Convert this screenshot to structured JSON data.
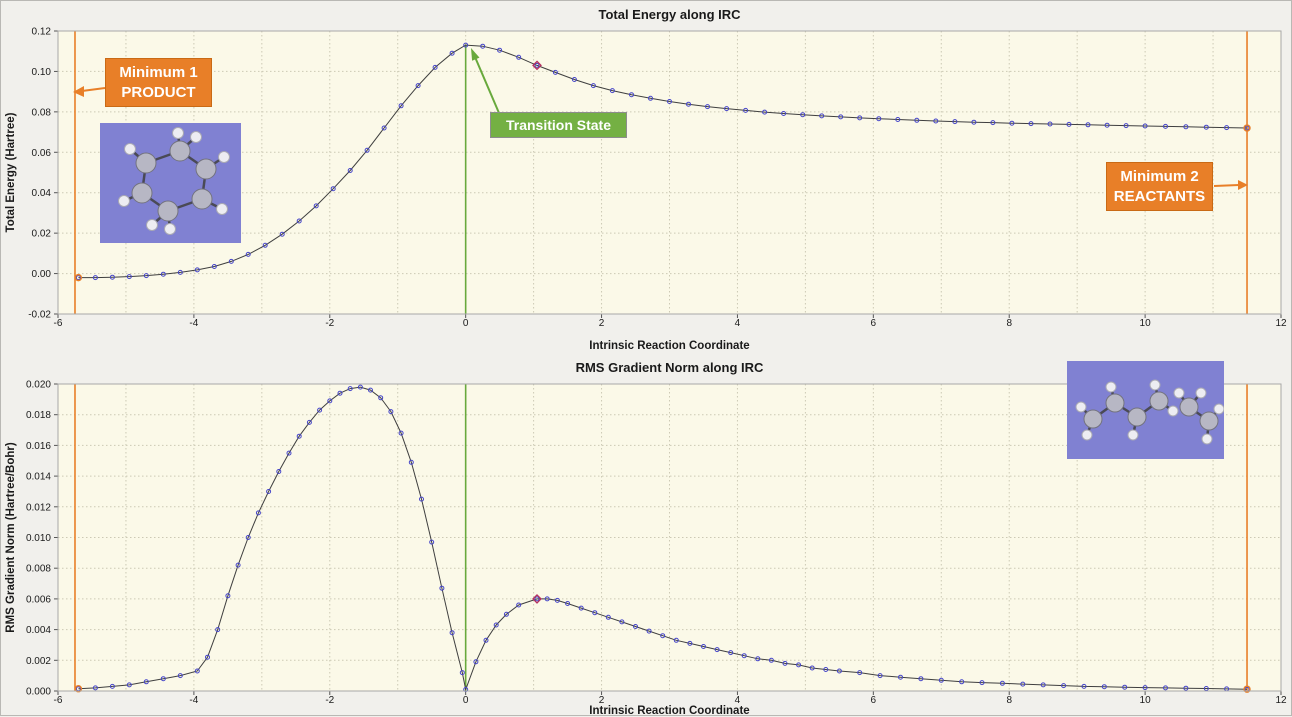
{
  "colors": {
    "window_bg": "#f1f0ec",
    "plot_bg": "#fbf9e8",
    "plot_border": "#a8a8a8",
    "grid": "#ccc9b4",
    "line": "#3f3f3f",
    "marker": "#4545c8",
    "orange": "#e87f28",
    "green": "#68a93c",
    "highlight": "#b5305f"
  },
  "chart_data": [
    {
      "type": "line",
      "title": "Total Energy along IRC",
      "xlabel": "Intrinsic Reaction Coordinate",
      "ylabel": "Total Energy (Hartree)",
      "xlim": [
        -6,
        12
      ],
      "ylim": [
        -0.02,
        0.12
      ],
      "xticks": [
        -6,
        -4,
        -2,
        0,
        2,
        4,
        6,
        8,
        10,
        12
      ],
      "yticks": [
        -0.02,
        0,
        0.02,
        0.04,
        0.06,
        0.08,
        0.1,
        0.12
      ],
      "ydec": 2,
      "grid": true,
      "legend": "none",
      "series": {
        "name": "Total Energy",
        "x": [
          -5.7,
          -5.45,
          -5.2,
          -4.95,
          -4.7,
          -4.45,
          -4.2,
          -3.95,
          -3.7,
          -3.45,
          -3.2,
          -2.95,
          -2.7,
          -2.45,
          -2.2,
          -1.95,
          -1.7,
          -1.45,
          -1.2,
          -0.95,
          -0.7,
          -0.45,
          -0.2,
          0,
          0.25,
          0.5,
          0.78,
          1.05,
          1.32,
          1.6,
          1.88,
          2.16,
          2.44,
          2.72,
          3,
          3.28,
          3.56,
          3.84,
          4.12,
          4.4,
          4.68,
          4.96,
          5.24,
          5.52,
          5.8,
          6.08,
          6.36,
          6.64,
          6.92,
          7.2,
          7.48,
          7.76,
          8.04,
          8.32,
          8.6,
          8.88,
          9.16,
          9.44,
          9.72,
          10,
          10.3,
          10.6,
          10.9,
          11.2,
          11.5
        ],
        "y": [
          -0.002,
          -0.002,
          -0.0018,
          -0.0015,
          -0.001,
          -0.0003,
          0.0006,
          0.0018,
          0.0035,
          0.006,
          0.0095,
          0.014,
          0.0195,
          0.026,
          0.0335,
          0.042,
          0.051,
          0.061,
          0.072,
          0.083,
          0.093,
          0.102,
          0.109,
          0.113,
          0.1125,
          0.1105,
          0.107,
          0.103,
          0.0995,
          0.096,
          0.093,
          0.0905,
          0.0885,
          0.0867,
          0.0851,
          0.0838,
          0.0826,
          0.0816,
          0.0807,
          0.0799,
          0.0792,
          0.0786,
          0.078,
          0.0775,
          0.077,
          0.0766,
          0.0762,
          0.0758,
          0.0755,
          0.0752,
          0.0749,
          0.0747,
          0.0744,
          0.0742,
          0.074,
          0.0738,
          0.0736,
          0.0734,
          0.0732,
          0.073,
          0.0728,
          0.0726,
          0.0724,
          0.0722,
          0.072
        ]
      },
      "highlight": {
        "x": 1.05,
        "y": 0.103
      },
      "vlines": [
        {
          "x": -5.75,
          "color": "#e87f28",
          "label": "Minimum 1 PRODUCT"
        },
        {
          "x": 0,
          "color": "#68a93c",
          "ytop": 0.1133,
          "label": "Transition State"
        },
        {
          "x": 11.5,
          "color": "#e87f28",
          "label": "Minimum 2 REACTANTS"
        }
      ],
      "endpoints": [
        {
          "x": -5.7,
          "y": -0.002
        },
        {
          "x": 11.5,
          "y": 0.072
        }
      ]
    },
    {
      "type": "line",
      "title": "RMS Gradient Norm along IRC",
      "xlabel": "Intrinsic Reaction Coordinate",
      "ylabel": "RMS Gradient Norm (Hartree/Bohr)",
      "xlim": [
        -6,
        12
      ],
      "ylim": [
        0,
        0.02
      ],
      "xticks": [
        -6,
        -4,
        -2,
        0,
        2,
        4,
        6,
        8,
        10,
        12
      ],
      "yticks": [
        0,
        0.002,
        0.004,
        0.006,
        0.008,
        0.01,
        0.012,
        0.014,
        0.016,
        0.018,
        0.02
      ],
      "ydec": 3,
      "grid": true,
      "legend": "none",
      "series": {
        "name": "RMS Gradient Norm",
        "x": [
          -5.7,
          -5.45,
          -5.2,
          -4.95,
          -4.7,
          -4.45,
          -4.2,
          -3.95,
          -3.8,
          -3.65,
          -3.5,
          -3.35,
          -3.2,
          -3.05,
          -2.9,
          -2.75,
          -2.6,
          -2.45,
          -2.3,
          -2.15,
          -2,
          -1.85,
          -1.7,
          -1.55,
          -1.4,
          -1.25,
          -1.1,
          -0.95,
          -0.8,
          -0.65,
          -0.5,
          -0.35,
          -0.2,
          -0.05,
          0,
          0.15,
          0.3,
          0.45,
          0.6,
          0.78,
          1.05,
          1.2,
          1.35,
          1.5,
          1.7,
          1.9,
          2.1,
          2.3,
          2.5,
          2.7,
          2.9,
          3.1,
          3.3,
          3.5,
          3.7,
          3.9,
          4.1,
          4.3,
          4.5,
          4.7,
          4.9,
          5.1,
          5.3,
          5.5,
          5.8,
          6.1,
          6.4,
          6.7,
          7,
          7.3,
          7.6,
          7.9,
          8.2,
          8.5,
          8.8,
          9.1,
          9.4,
          9.7,
          10,
          10.3,
          10.6,
          10.9,
          11.2,
          11.5
        ],
        "y": [
          0.00015,
          0.0002,
          0.0003,
          0.0004,
          0.0006,
          0.0008,
          0.001,
          0.0013,
          0.0022,
          0.004,
          0.0062,
          0.0082,
          0.01,
          0.0116,
          0.013,
          0.0143,
          0.0155,
          0.0166,
          0.0175,
          0.0183,
          0.0189,
          0.0194,
          0.0197,
          0.0198,
          0.0196,
          0.0191,
          0.0182,
          0.0168,
          0.0149,
          0.0125,
          0.0097,
          0.0067,
          0.0038,
          0.0012,
          0.0001,
          0.0019,
          0.0033,
          0.0043,
          0.005,
          0.0056,
          0.006,
          0.006,
          0.0059,
          0.0057,
          0.0054,
          0.0051,
          0.0048,
          0.0045,
          0.0042,
          0.0039,
          0.0036,
          0.0033,
          0.0031,
          0.0029,
          0.0027,
          0.0025,
          0.0023,
          0.0021,
          0.002,
          0.0018,
          0.0017,
          0.0015,
          0.0014,
          0.0013,
          0.0012,
          0.001,
          0.0009,
          0.0008,
          0.0007,
          0.0006,
          0.00055,
          0.0005,
          0.00045,
          0.0004,
          0.00035,
          0.0003,
          0.00028,
          0.00025,
          0.00022,
          0.0002,
          0.00018,
          0.00016,
          0.00014,
          0.00012
        ]
      },
      "highlight": {
        "x": 1.05,
        "y": 0.006
      },
      "vlines": [
        {
          "x": -5.75,
          "color": "#e87f28"
        },
        {
          "x": 0,
          "color": "#68a93c"
        },
        {
          "x": 11.5,
          "color": "#e87f28"
        }
      ],
      "endpoints": [
        {
          "x": -5.7,
          "y": 0.00015
        },
        {
          "x": 11.5,
          "y": 0.00012
        }
      ]
    }
  ],
  "annotations": {
    "min1": {
      "line1": "Minimum 1",
      "line2": "PRODUCT"
    },
    "ts": {
      "label": "Transition State"
    },
    "min2": {
      "line1": "Minimum  2",
      "line2": "REACTANTS"
    }
  }
}
